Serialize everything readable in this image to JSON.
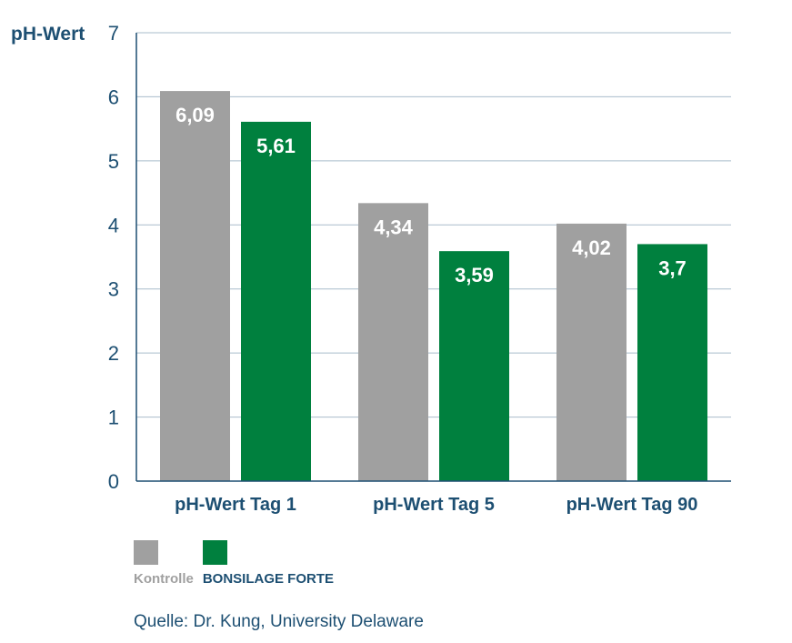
{
  "chart_data": {
    "type": "bar",
    "ylabel": "pH-Wert",
    "xlabel": "",
    "ylim": [
      0,
      7
    ],
    "yticks": [
      0,
      1,
      2,
      3,
      4,
      5,
      6,
      7
    ],
    "grid": true,
    "legend": "bottom-left",
    "categories": [
      "pH-Wert Tag 1",
      "pH-Wert Tag 5",
      "pH-Wert Tag 90"
    ],
    "series": [
      {
        "name": "Kontrolle",
        "color": "#a0a0a0",
        "values": [
          6.09,
          4.34,
          4.02
        ],
        "labels": [
          "6,09",
          "4,34",
          "4,02"
        ]
      },
      {
        "name": "BONSILAGE FORTE",
        "color": "#00803e",
        "values": [
          5.61,
          3.59,
          3.7
        ],
        "labels": [
          "5,61",
          "3,59",
          "3,7"
        ]
      }
    ]
  },
  "legend_text_colors": [
    "#a0a0a0",
    "#1d4f72"
  ],
  "source": "Quelle: Dr. Kung, University Delaware"
}
